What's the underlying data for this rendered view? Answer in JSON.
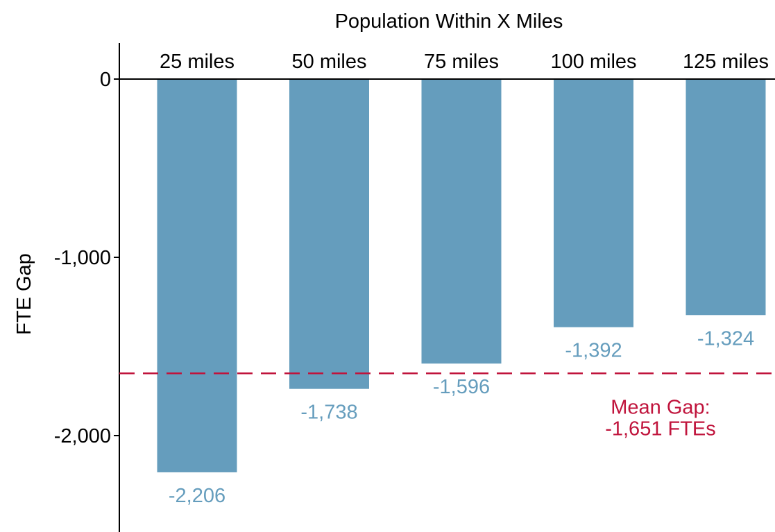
{
  "chart_data": {
    "type": "bar",
    "title": "",
    "xlabel": "Population Within X Miles",
    "ylabel": "FTE Gap",
    "categories": [
      "25 miles",
      "50 miles",
      "75 miles",
      "100 miles",
      "125 miles"
    ],
    "values": [
      -2206,
      -1738,
      -1596,
      -1392,
      -1324
    ],
    "value_labels": [
      "-2,206",
      "-1,738",
      "-1,596",
      "-1,392",
      "-1,324"
    ],
    "y_ticks": [
      0,
      -1000,
      -2000
    ],
    "y_tick_labels": [
      "0",
      "-1,000",
      "-2,000"
    ],
    "ylim": [
      -2520,
      200
    ],
    "x_axis_position": "top",
    "grid": false,
    "mean_line": {
      "value": -1651,
      "label_line1": "Mean Gap:",
      "label_line2": "-1,651 FTEs",
      "color": "#c0143c",
      "style": "dashed"
    },
    "bar_color": "#659dbd",
    "value_label_color": "#659dbd"
  }
}
